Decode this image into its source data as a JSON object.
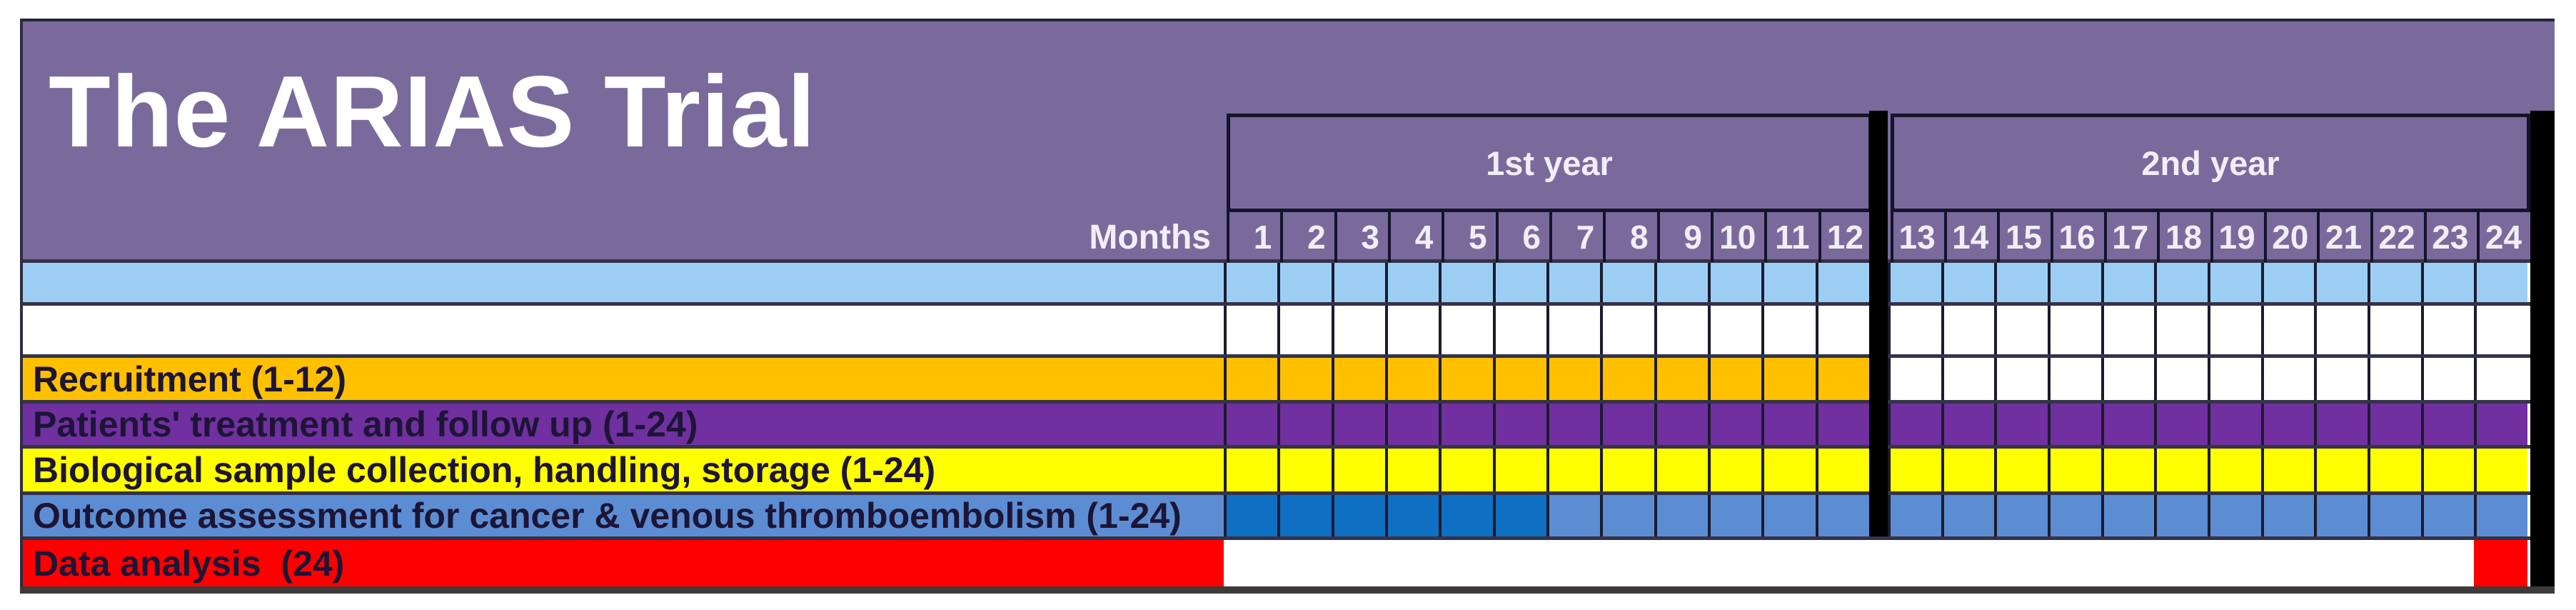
{
  "title": "The ARIAS Trial",
  "timeline": {
    "months_label": "Months",
    "years": [
      {
        "label": "1st year",
        "months": [
          "1",
          "2",
          "3",
          "4",
          "5",
          "6",
          "7",
          "8",
          "9",
          "10",
          "11",
          "12"
        ]
      },
      {
        "label": "2nd year",
        "months": [
          "13",
          "14",
          "15",
          "16",
          "17",
          "18",
          "19",
          "20",
          "21",
          "22",
          "23",
          "24"
        ]
      }
    ]
  },
  "rows": [
    {
      "label": "",
      "label_bg": "#9CCEF4",
      "grid": true,
      "segments": [
        {
          "from": 1,
          "to": 24,
          "color": "#9CCEF4"
        }
      ]
    },
    {
      "label": "",
      "label_bg": "#FFFFFF",
      "grid": true,
      "segments": [
        {
          "from": 1,
          "to": 24,
          "color": "#FFFFFF"
        }
      ]
    },
    {
      "label": "Recruitment (1-12)",
      "label_bg": "#FFC000",
      "grid": true,
      "segments": [
        {
          "from": 1,
          "to": 12,
          "color": "#FFC000"
        },
        {
          "from": 13,
          "to": 24,
          "color": "#FFFFFF"
        }
      ]
    },
    {
      "label": "Patients' treatment and follow up (1-24)",
      "label_bg": "#7030A0",
      "grid": true,
      "segments": [
        {
          "from": 1,
          "to": 24,
          "color": "#7030A0"
        }
      ]
    },
    {
      "label": "Biological sample collection, handling, storage (1-24)",
      "label_bg": "#FFFF00",
      "grid": true,
      "segments": [
        {
          "from": 1,
          "to": 24,
          "color": "#FFFF00"
        }
      ]
    },
    {
      "label": "Outcome assessment for cancer & venous thromboembolism (1-24)",
      "label_bg": "#5C8DD3",
      "grid": true,
      "segments": [
        {
          "from": 1,
          "to": 6,
          "color": "#0F6FC2"
        },
        {
          "from": 7,
          "to": 24,
          "color": "#5C8DD3"
        }
      ]
    },
    {
      "label": "Data analysis  (24)",
      "label_bg": "#FF0000",
      "grid": false,
      "segments": [
        {
          "from": 1,
          "to": 23,
          "color": "#FFFFFF"
        },
        {
          "from": 24,
          "to": 24,
          "color": "#FF0000"
        }
      ]
    }
  ],
  "colors": {
    "header_purple": "#7A6A9C",
    "grid_line": "#1B1B2E",
    "row_separator": "#33334A",
    "divider_black": "#000000",
    "header_text": "#FFFFFF",
    "label_text": "#1D1535",
    "bottom_border": "#3F3A3A",
    "light_blue": "#9CCEF4",
    "gold": "#FFC000",
    "purple": "#7030A0",
    "yellow": "#FFFF00",
    "blue_light": "#5C8DD3",
    "blue_dark": "#0F6FC2",
    "red": "#FF0000",
    "white": "#FFFFFF"
  },
  "chart_data": {
    "type": "bar",
    "subtype": "gantt-timeline",
    "title": "The ARIAS Trial",
    "xlabel": "Months",
    "x_range": [
      1,
      24
    ],
    "x_groups": [
      {
        "label": "1st year",
        "from": 1,
        "to": 12
      },
      {
        "label": "2nd year",
        "from": 13,
        "to": 24
      }
    ],
    "tasks": [
      {
        "label": "Recruitment (1-12)",
        "start_month": 1,
        "end_month": 12,
        "color": "#FFC000"
      },
      {
        "label": "Patients' treatment and follow up (1-24)",
        "start_month": 1,
        "end_month": 24,
        "color": "#7030A0"
      },
      {
        "label": "Biological sample collection, handling, storage (1-24)",
        "start_month": 1,
        "end_month": 24,
        "color": "#FFFF00"
      },
      {
        "label": "Outcome assessment for cancer & venous thromboembolism (1-24)",
        "start_month": 1,
        "end_month": 24,
        "color": "#5C8DD3",
        "segments": [
          {
            "from": 1,
            "to": 6,
            "color": "#0F6FC2"
          },
          {
            "from": 7,
            "to": 24,
            "color": "#5C8DD3"
          }
        ]
      },
      {
        "label": "Data analysis  (24)",
        "start_month": 24,
        "end_month": 24,
        "color": "#FF0000"
      }
    ],
    "legend_position": "none",
    "grid": true
  }
}
